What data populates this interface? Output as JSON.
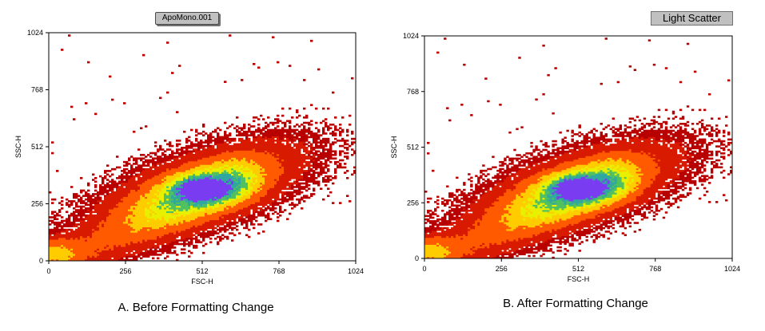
{
  "chart_data": [
    {
      "type": "heatmap",
      "title": "ApoMono.001",
      "xlabel": "FSC-H",
      "ylabel": "SSC-H",
      "xlim": [
        0,
        1024
      ],
      "ylim": [
        0,
        1024
      ],
      "xticks": [
        0,
        256,
        512,
        768,
        1024
      ],
      "yticks": [
        0,
        256,
        512,
        768,
        1024
      ],
      "caption": "A. Before Formatting Change",
      "density_center": [
        512,
        325
      ],
      "colors": [
        "#b80000",
        "#d81a00",
        "#ff5a00",
        "#ffcc00",
        "#e8f000",
        "#50c060",
        "#30a8a0",
        "#7a3cf0"
      ]
    },
    {
      "type": "heatmap",
      "title": "Light Scatter",
      "xlabel": "FSC-H",
      "ylabel": "SSC-H",
      "xlim": [
        0,
        1024
      ],
      "ylim": [
        0,
        1024
      ],
      "xticks": [
        0,
        256,
        512,
        768,
        1024
      ],
      "yticks": [
        0,
        256,
        512,
        768,
        1024
      ],
      "caption": "B. After Formatting Change",
      "density_center": [
        512,
        325
      ],
      "colors": [
        "#b80000",
        "#d81a00",
        "#ff5a00",
        "#ffcc00",
        "#e8f000",
        "#50c060",
        "#30a8a0",
        "#7a3cf0"
      ]
    }
  ]
}
